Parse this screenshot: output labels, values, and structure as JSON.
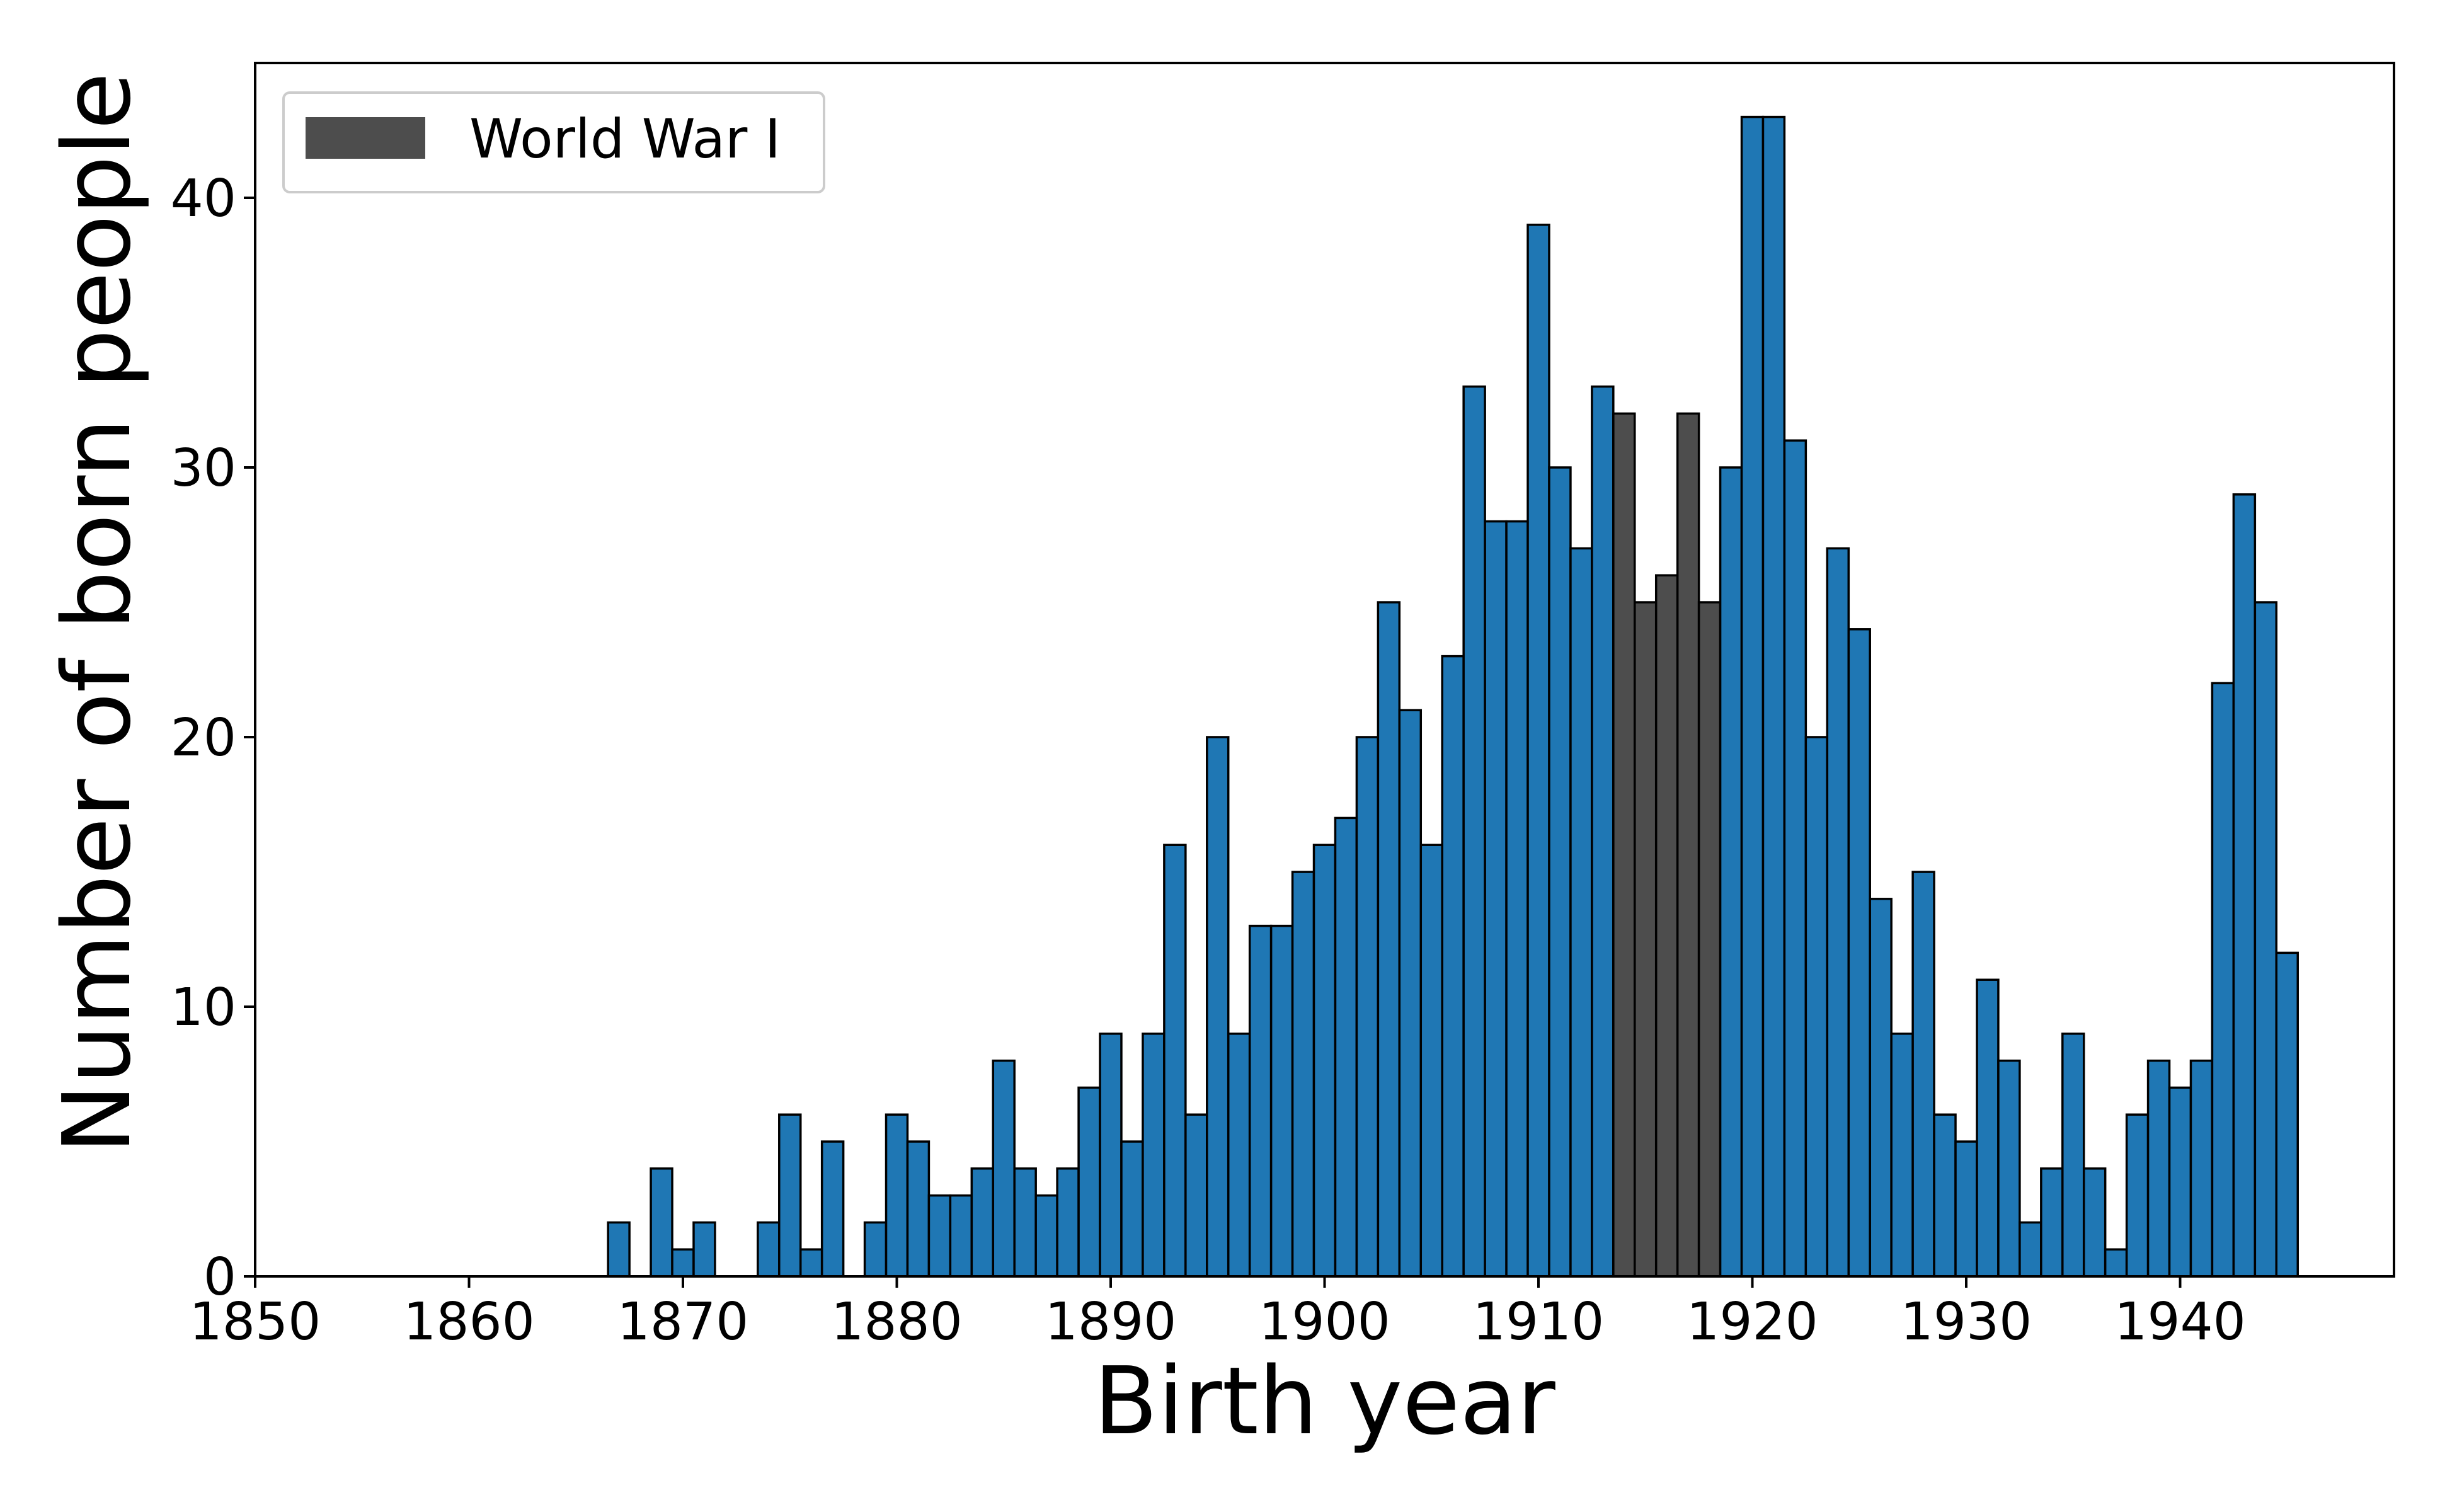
{
  "chart_data": {
    "type": "bar",
    "title": "",
    "xlabel": "Birth year",
    "ylabel": "Number of born people",
    "xlim": [
      1850,
      1950
    ],
    "ylim": [
      0,
      45
    ],
    "x_ticks": [
      "1850",
      "1860",
      "1870",
      "1880",
      "1890",
      "1900",
      "1910",
      "1920",
      "1930",
      "1940"
    ],
    "y_ticks": [
      "0",
      "10",
      "20",
      "30",
      "40"
    ],
    "grid": false,
    "legend": {
      "position": "top-left",
      "entries": [
        {
          "label": "World War I",
          "color": "#4d4d4d"
        }
      ]
    },
    "colors": {
      "default": "#1f77b4",
      "highlight": "#4d4d4d",
      "edge": "#000000"
    },
    "highlight_years": [
      1914,
      1915,
      1916,
      1917,
      1918
    ],
    "x": [
      1867,
      1868,
      1869,
      1870,
      1871,
      1872,
      1873,
      1874,
      1875,
      1876,
      1877,
      1878,
      1879,
      1880,
      1881,
      1882,
      1883,
      1884,
      1885,
      1886,
      1887,
      1888,
      1889,
      1890,
      1891,
      1892,
      1893,
      1894,
      1895,
      1896,
      1897,
      1898,
      1899,
      1900,
      1901,
      1902,
      1903,
      1904,
      1905,
      1906,
      1907,
      1908,
      1909,
      1910,
      1911,
      1912,
      1913,
      1914,
      1915,
      1916,
      1917,
      1918,
      1919,
      1920,
      1921,
      1922,
      1923,
      1924,
      1925,
      1926,
      1927,
      1928,
      1929,
      1930,
      1931,
      1932,
      1933,
      1934,
      1935,
      1936,
      1937,
      1938,
      1939,
      1940,
      1941,
      1942,
      1943,
      1944,
      1945
    ],
    "values": [
      2,
      0,
      4,
      1,
      2,
      0,
      0,
      2,
      6,
      1,
      5,
      0,
      2,
      6,
      5,
      3,
      3,
      4,
      8,
      4,
      3,
      4,
      7,
      9,
      5,
      9,
      16,
      6,
      20,
      9,
      13,
      13,
      15,
      16,
      17,
      20,
      25,
      21,
      16,
      23,
      33,
      28,
      28,
      39,
      30,
      27,
      33,
      32,
      25,
      26,
      32,
      25,
      30,
      43,
      43,
      31,
      20,
      27,
      24,
      14,
      9,
      15,
      6,
      5,
      11,
      8,
      2,
      4,
      9,
      4,
      1,
      6,
      8,
      7,
      8,
      22,
      29,
      25,
      12
    ]
  }
}
